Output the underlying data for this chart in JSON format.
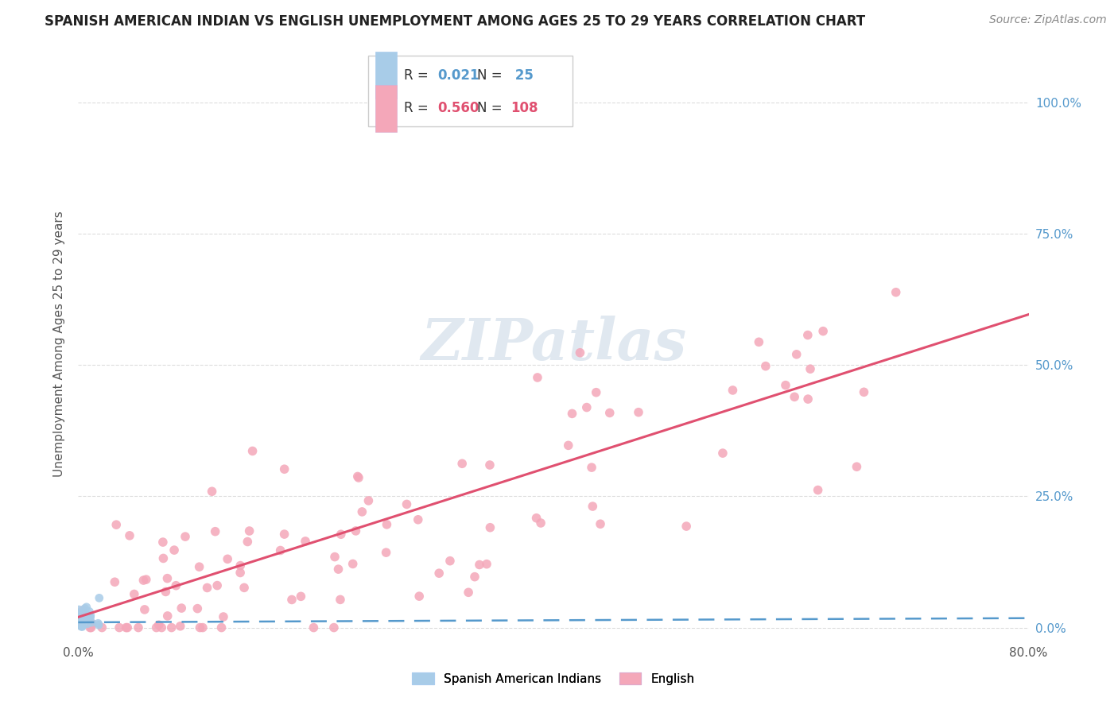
{
  "title": "SPANISH AMERICAN INDIAN VS ENGLISH UNEMPLOYMENT AMONG AGES 25 TO 29 YEARS CORRELATION CHART",
  "source": "Source: ZipAtlas.com",
  "ylabel": "Unemployment Among Ages 25 to 29 years",
  "xlim": [
    0.0,
    0.8
  ],
  "ylim": [
    -0.02,
    1.1
  ],
  "yticks": [
    0.0,
    0.25,
    0.5,
    0.75,
    1.0
  ],
  "xticks": [
    0.0,
    0.8
  ],
  "xtick_labels": [
    "0.0%",
    "80.0%"
  ],
  "right_ytick_labels": [
    "0.0%",
    "25.0%",
    "50.0%",
    "75.0%",
    "100.0%"
  ],
  "blue_R": 0.021,
  "blue_N": 25,
  "pink_R": 0.56,
  "pink_N": 108,
  "blue_color": "#a8cce8",
  "pink_color": "#f4a7b9",
  "blue_line_color": "#5599cc",
  "pink_line_color": "#e05070",
  "legend_label_blue": "Spanish American Indians",
  "legend_label_pink": "English",
  "watermark": "ZIPatlas",
  "right_tick_color": "#5599cc",
  "grid_color": "#dddddd",
  "title_color": "#222222",
  "source_color": "#888888",
  "ylabel_color": "#555555"
}
